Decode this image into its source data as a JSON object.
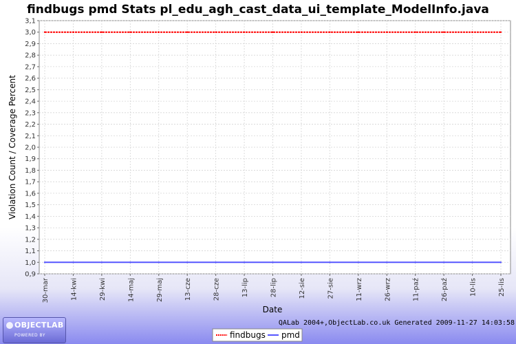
{
  "chart_data": {
    "type": "line",
    "title": "findbugs pmd  Stats pl_edu_agh_cast_data_ui_template_ModelInfo.java",
    "xlabel": "Date",
    "ylabel": "Violation Count / Coverage Percent",
    "categories": [
      "30-mar",
      "14-kwi",
      "29-kwi",
      "14-maj",
      "29-maj",
      "13-cze",
      "28-cze",
      "13-lip",
      "28-lip",
      "12-sie",
      "27-sie",
      "11-wrz",
      "26-wrz",
      "11-paź",
      "26-paź",
      "10-lis",
      "25-lis"
    ],
    "ylim": [
      0.9,
      3.1
    ],
    "yticks": [
      "0,9",
      "1,0",
      "1,1",
      "1,2",
      "1,3",
      "1,4",
      "1,5",
      "1,6",
      "1,7",
      "1,8",
      "1,9",
      "2,0",
      "2,1",
      "2,2",
      "2,3",
      "2,4",
      "2,5",
      "2,6",
      "2,7",
      "2,8",
      "2,9",
      "3,0",
      "3,1"
    ],
    "grid": true,
    "legend_position": "bottom",
    "series": [
      {
        "name": "findbugs",
        "color": "#ff0000",
        "values": [
          3.0,
          3.0,
          3.0,
          3.0,
          3.0,
          3.0,
          3.0,
          3.0,
          3.0,
          3.0,
          3.0,
          3.0,
          3.0,
          3.0,
          3.0,
          3.0,
          3.0
        ]
      },
      {
        "name": "pmd",
        "color": "#5555ff",
        "values": [
          1.0,
          1.0,
          1.0,
          1.0,
          1.0,
          1.0,
          1.0,
          1.0,
          1.0,
          1.0,
          1.0,
          1.0,
          1.0,
          1.0,
          1.0,
          1.0,
          1.0
        ]
      }
    ]
  },
  "footer": {
    "credit": "QALab 2004+,ObjectLab.co.uk Generated 2009-11-27 14:03:58"
  },
  "logo": {
    "main": "OBJECTLAB",
    "sub": "POWERED BY"
  }
}
